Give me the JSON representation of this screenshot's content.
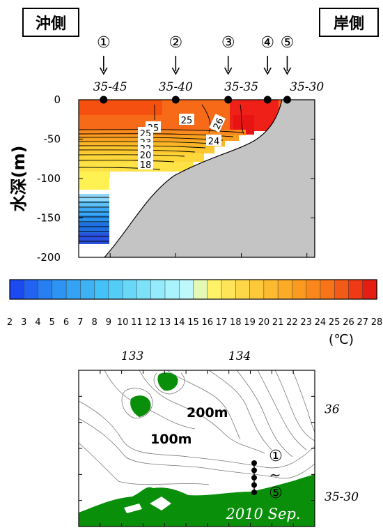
{
  "labels": {
    "offshore": "沖側",
    "onshore": "岸側",
    "depth_axis": "水深(m)",
    "unit": "(℃)"
  },
  "stations": [
    {
      "mark": "①",
      "lat": 35.7583
    },
    {
      "mark": "②",
      "lat": 35.6667
    },
    {
      "mark": "③",
      "lat": 35.6
    },
    {
      "mark": "④",
      "lat": 35.55
    },
    {
      "mark": "⑤",
      "lat": 35.525
    }
  ],
  "chart_data": [
    {
      "type": "contour-section",
      "xlabel": "",
      "ylabel": "水深(m)",
      "x_ticks": [
        "35-45",
        "35-40",
        "35-35",
        "35-30"
      ],
      "x_tick_values": [
        35.75,
        35.6667,
        35.5833,
        35.5
      ],
      "xlim": [
        35.79,
        35.49
      ],
      "y_ticks": [
        "0",
        "-50",
        "-100",
        "-150",
        "-200"
      ],
      "y_tick_values": [
        0,
        -50,
        -100,
        -150,
        -200
      ],
      "ylim": [
        -200,
        0
      ],
      "isotherm_labels": [
        "25",
        "26",
        "25",
        "25",
        "23",
        "22",
        "24",
        "20",
        "18"
      ],
      "colorbar": {
        "min": 2,
        "max": 28,
        "step": 1,
        "labels": [
          "2",
          "3",
          "4",
          "5",
          "6",
          "7",
          "8",
          "9",
          "10",
          "11",
          "12",
          "13",
          "14",
          "15",
          "16",
          "17",
          "18",
          "19",
          "20",
          "21",
          "22",
          "23",
          "24",
          "25",
          "26",
          "27",
          "28"
        ]
      }
    },
    {
      "type": "map",
      "lon_ticks": [
        "133",
        "134"
      ],
      "lon_tick_values": [
        133,
        134
      ],
      "lat_ticks": [
        "36",
        "35-30"
      ],
      "lat_tick_values": [
        36.0,
        35.5
      ],
      "contour_labels": [
        "200m",
        "100m"
      ],
      "station_range": [
        "①",
        "~",
        "⑤"
      ],
      "date_label": "2010 Sep."
    }
  ]
}
